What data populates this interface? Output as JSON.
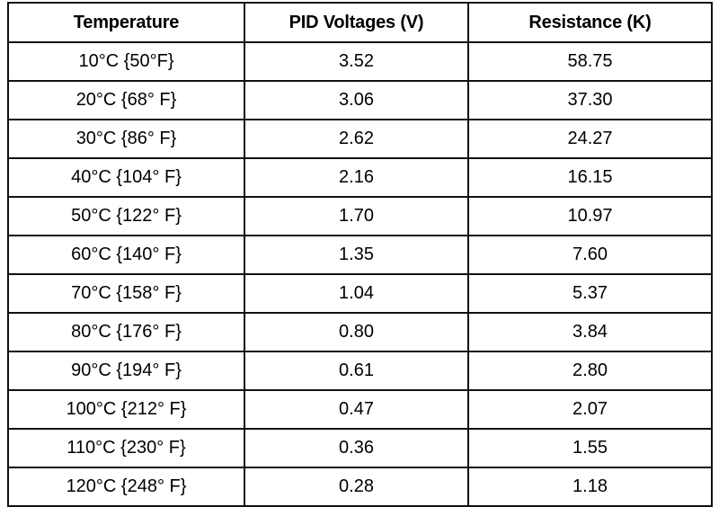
{
  "table": {
    "headers": [
      "Temperature",
      "PID Voltages (V)",
      "Resistance (K)"
    ],
    "rows": [
      [
        "10°C {50°F}",
        "3.52",
        "58.75"
      ],
      [
        "20°C {68° F}",
        "3.06",
        "37.30"
      ],
      [
        "30°C {86° F}",
        "2.62",
        "24.27"
      ],
      [
        "40°C {104° F}",
        "2.16",
        "16.15"
      ],
      [
        "50°C {122° F}",
        "1.70",
        "10.97"
      ],
      [
        "60°C {140° F}",
        "1.35",
        "7.60"
      ],
      [
        "70°C {158° F}",
        "1.04",
        "5.37"
      ],
      [
        "80°C {176° F}",
        "0.80",
        "3.84"
      ],
      [
        "90°C {194° F}",
        "0.61",
        "2.80"
      ],
      [
        "100°C {212° F}",
        "0.47",
        "2.07"
      ],
      [
        "110°C {230° F}",
        "0.36",
        "1.55"
      ],
      [
        "120°C {248° F}",
        "0.28",
        "1.18"
      ]
    ]
  }
}
